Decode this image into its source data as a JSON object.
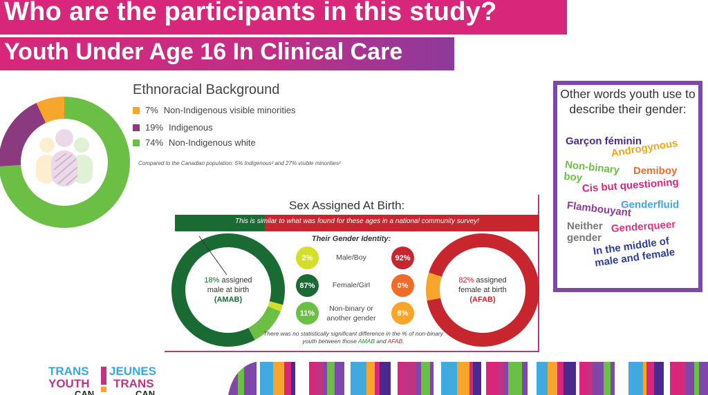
{
  "header": {
    "title": "Who are the participants in this study?",
    "subtitle": "Youth Under Age 16 In Clinical Care"
  },
  "colors": {
    "magenta": "#d8277a",
    "purple": "#7f47a8",
    "green": "#6bbf44",
    "dark_green": "#1a6b33",
    "red": "#c8262e",
    "orange": "#f7a52b"
  },
  "ethnoracial": {
    "title": "Ethnoracial Background",
    "legend": [
      {
        "pct": "7%",
        "label": "Non-Indigenous visible minorities",
        "color": "#f7a52b"
      },
      {
        "pct": "19%",
        "label": "Indigenous",
        "color": "#8c3a7f"
      },
      {
        "pct": "74%",
        "label": "Non-Indigenous white",
        "color": "#6bbf44"
      }
    ],
    "note": "Compared to the Canadian population: 5% Indigenous² and 27% visible minorities²"
  },
  "sex_at_birth": {
    "title": "Sex Assigned At Birth:",
    "banner": "This is similar to what was found for these ages in a national community survey!",
    "gender_identity_title": "Their Gender Identity:",
    "amab": {
      "pct": "18%",
      "line1": "assigned",
      "line2": "male at birth",
      "abbr": "(AMAB)"
    },
    "afab": {
      "pct": "82%",
      "line1": "assigned",
      "line2": "female at birth",
      "abbr": "(AFAB)"
    },
    "rows": [
      {
        "label": "Male/Boy",
        "amab": "2%",
        "afab": "92%"
      },
      {
        "label": "Female/Girl",
        "amab": "87%",
        "afab": "0%"
      },
      {
        "label": "Non-binary or another gender",
        "amab": "11%",
        "afab": "8%"
      }
    ],
    "note_part1": "There was no statistically significant difference in the % of non-binary youth between those",
    "note_amab": "AMAB",
    "note_and": "and",
    "note_afab": "AFAB."
  },
  "words": {
    "title": "Other words youth use to describe their gender:",
    "items": [
      {
        "text": "Garçon féminin",
        "color": "#4a2a8c"
      },
      {
        "text": "Androgynous",
        "color": "#f2a71b"
      },
      {
        "text": "Non-binary boy",
        "color": "#6bbf44"
      },
      {
        "text": "Demiboy",
        "color": "#f06b2a"
      },
      {
        "text": "Cis but questioning",
        "color": "#d8277a"
      },
      {
        "text": "Flambouyant",
        "color": "#8c3a9c"
      },
      {
        "text": "Genderfluid",
        "color": "#3fa9e0"
      },
      {
        "text": "Neither gender",
        "color": "#777777"
      },
      {
        "text": "Genderqueer",
        "color": "#e0337f"
      },
      {
        "text": "In the middle of male and female",
        "color": "#2c3e9c"
      }
    ]
  },
  "logo": {
    "en1": "TRANS",
    "en2": "YOUTH",
    "en3": "CAN",
    "fr1": "JEUNES",
    "fr2": "TRANS",
    "fr3": "CAN"
  },
  "chart_data": [
    {
      "type": "pie",
      "title": "Ethnoracial Background",
      "categories": [
        "Non-Indigenous visible minorities",
        "Indigenous",
        "Non-Indigenous white"
      ],
      "values": [
        7,
        19,
        74
      ]
    },
    {
      "type": "pie",
      "title": "Sex Assigned At Birth:",
      "categories": [
        "assigned male at birth (AMAB)",
        "assigned female at birth (AFAB)"
      ],
      "values": [
        18,
        82
      ]
    },
    {
      "type": "pie",
      "title": "",
      "categories": [
        "Female/Girl",
        "Non-binary or another gender",
        "Male/Boy"
      ],
      "values": [
        87,
        11,
        2
      ]
    },
    {
      "type": "pie",
      "title": "",
      "categories": [
        "Male/Boy",
        "Non-binary or another gender",
        "Female/Girl"
      ],
      "values": [
        92,
        8,
        0
      ]
    }
  ]
}
